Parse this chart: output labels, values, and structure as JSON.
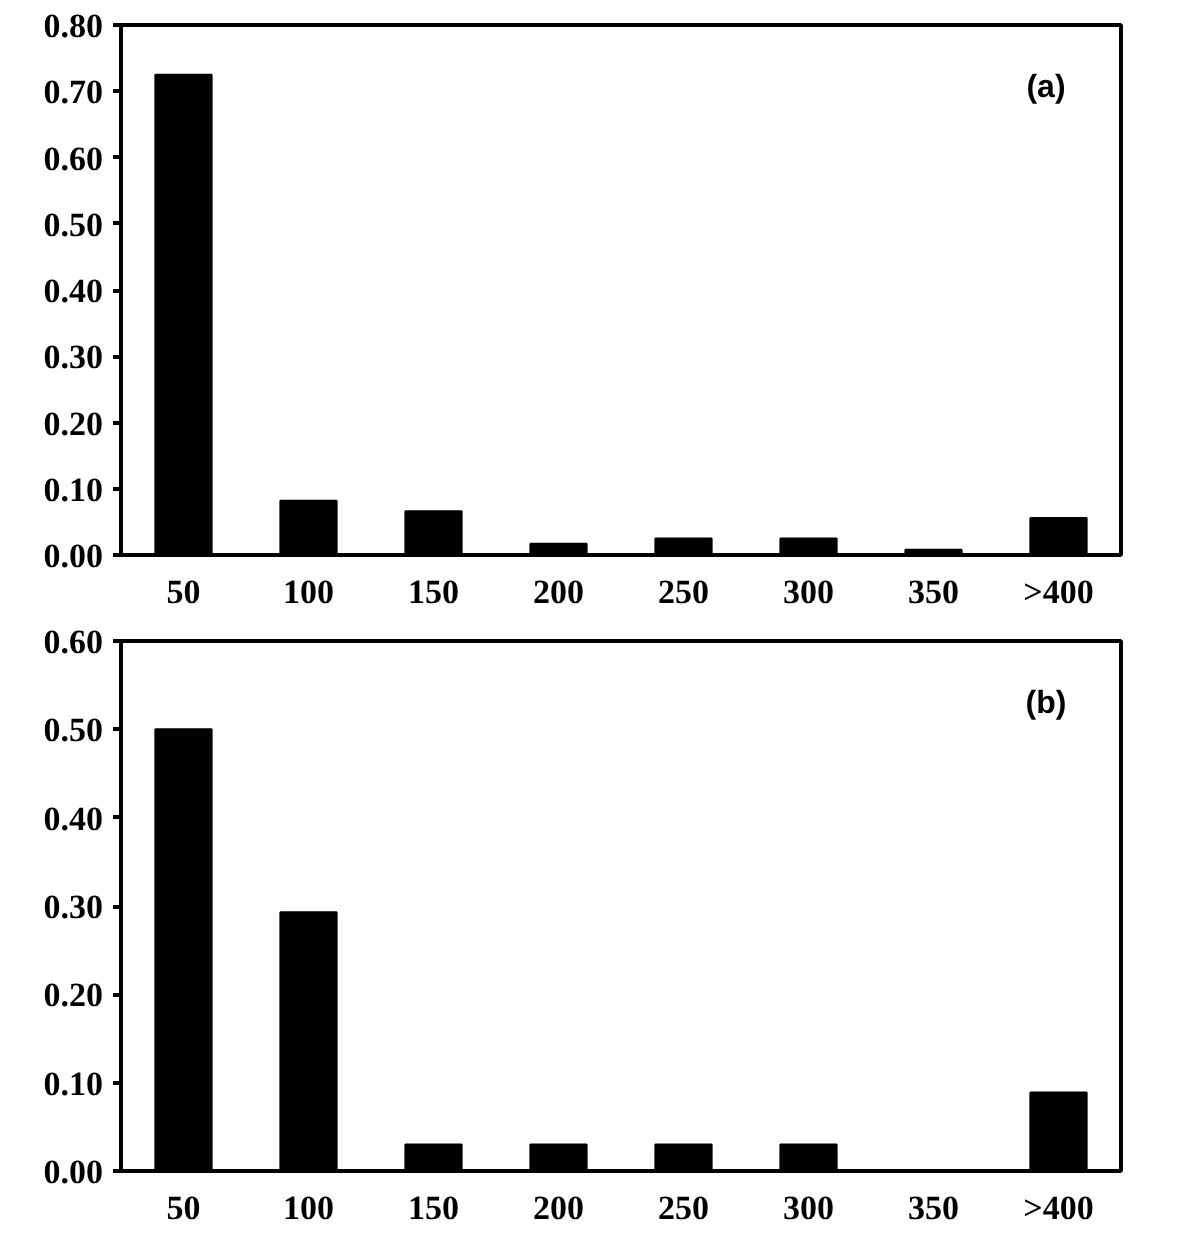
{
  "chart_data": [
    {
      "type": "bar",
      "categories": [
        "50",
        "100",
        "150",
        "200",
        "250",
        "300",
        "350",
        ">400"
      ],
      "values": [
        0.725,
        0.082,
        0.066,
        0.017,
        0.025,
        0.025,
        0.008,
        0.056
      ],
      "color": "#000000",
      "ylim": [
        0,
        0.8
      ],
      "yticks": [
        {
          "value": 0,
          "label": "0.00"
        },
        {
          "value": 0.1,
          "label": "0.10"
        },
        {
          "value": 0.2,
          "label": "0.20"
        },
        {
          "value": 0.3,
          "label": "0.30"
        },
        {
          "value": 0.4,
          "label": "0.40"
        },
        {
          "value": 0.5,
          "label": "0.50"
        },
        {
          "value": 0.6,
          "label": "0.60"
        },
        {
          "value": 0.7,
          "label": "0.70"
        },
        {
          "value": 0.8,
          "label": "0.80"
        }
      ],
      "annotations": [
        "(a)"
      ],
      "grid": false
    },
    {
      "type": "bar",
      "categories": [
        "50",
        "100",
        "150",
        "200",
        "250",
        "300",
        "350",
        ">400"
      ],
      "values": [
        0.5,
        0.293,
        0.03,
        0.03,
        0.03,
        0.03,
        0,
        0.089
      ],
      "color": "#000000",
      "ylim": [
        0,
        0.6
      ],
      "yticks": [
        {
          "value": 0,
          "label": "0.00"
        },
        {
          "value": 0.1,
          "label": "0.10"
        },
        {
          "value": 0.2,
          "label": "0.20"
        },
        {
          "value": 0.3,
          "label": "0.30"
        },
        {
          "value": 0.4,
          "label": "0.40"
        },
        {
          "value": 0.5,
          "label": "0.50"
        },
        {
          "value": 0.6,
          "label": "0.60"
        }
      ],
      "annotations": [
        "(b)"
      ],
      "grid": false
    }
  ]
}
